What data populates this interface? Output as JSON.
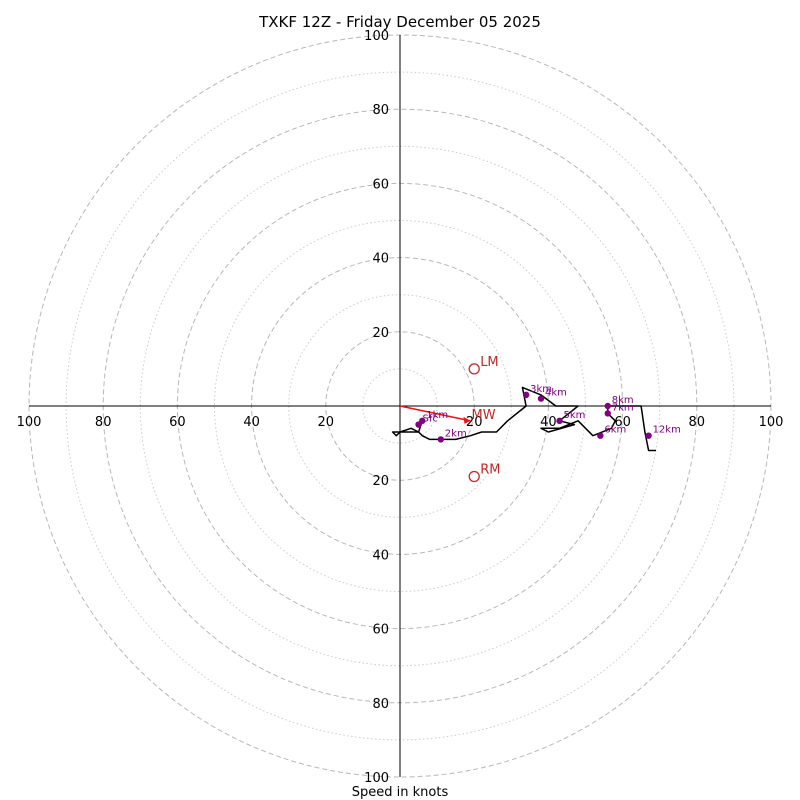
{
  "chart_data": {
    "type": "hodograph",
    "title": "TXKF 12Z - Friday December 05 2025",
    "xlabel": "Speed in knots",
    "units": "knots",
    "range": [
      -100,
      100
    ],
    "rings_major": [
      20,
      40,
      60,
      80,
      100
    ],
    "rings_minor": [
      10,
      30,
      50,
      70,
      90
    ],
    "tick_labels_x": [
      "100",
      "80",
      "60",
      "40",
      "20",
      "20",
      "40",
      "60",
      "80",
      "100"
    ],
    "tick_values_x": [
      -100,
      -80,
      -60,
      -40,
      -20,
      20,
      40,
      60,
      80,
      100
    ],
    "tick_labels_y": [
      "100",
      "80",
      "60",
      "40",
      "20",
      "20",
      "40",
      "60",
      "80",
      "100"
    ],
    "tick_values_y": [
      100,
      80,
      60,
      40,
      20,
      -20,
      -40,
      -60,
      -80,
      -100
    ],
    "hodograph_trace": [
      [
        5,
        -5
      ],
      [
        6,
        -4
      ],
      [
        5,
        -7
      ],
      [
        3,
        -6
      ],
      [
        0,
        -7
      ],
      [
        -1,
        -8
      ],
      [
        -2,
        -7
      ],
      [
        -1,
        -7
      ],
      [
        2,
        -7
      ],
      [
        5,
        -7
      ],
      [
        6,
        -8
      ],
      [
        8,
        -9
      ],
      [
        11,
        -9
      ],
      [
        15,
        -9
      ],
      [
        19,
        -8
      ],
      [
        22,
        -7
      ],
      [
        26,
        -7
      ],
      [
        29,
        -4
      ],
      [
        34,
        0
      ],
      [
        33,
        5
      ],
      [
        38,
        3
      ],
      [
        42,
        0
      ],
      [
        48,
        0
      ],
      [
        43,
        -4
      ],
      [
        47,
        -5
      ],
      [
        40,
        -7
      ],
      [
        38,
        -6
      ],
      [
        43,
        -6
      ],
      [
        48,
        -4
      ],
      [
        52,
        -8
      ],
      [
        57,
        -6
      ],
      [
        58,
        -4
      ],
      [
        56,
        -2
      ],
      [
        56,
        0
      ],
      [
        60,
        0
      ],
      [
        65,
        0
      ],
      [
        66,
        -7
      ],
      [
        67,
        -12
      ],
      [
        69,
        -12
      ]
    ],
    "height_markers": [
      {
        "label": "Sfc",
        "u": 5,
        "v": -5
      },
      {
        "label": "1km",
        "u": 6,
        "v": -4
      },
      {
        "label": "2km",
        "u": 11,
        "v": -9
      },
      {
        "label": "3km",
        "u": 34,
        "v": 3
      },
      {
        "label": "4km",
        "u": 38,
        "v": 2
      },
      {
        "label": "5km",
        "u": 43,
        "v": -4
      },
      {
        "label": "6km",
        "u": 54,
        "v": -8
      },
      {
        "label": "7km",
        "u": 56,
        "v": -2
      },
      {
        "label": "8km",
        "u": 56,
        "v": 0
      },
      {
        "label": "12km",
        "u": 67,
        "v": -8
      }
    ],
    "mean_wind": {
      "label": "MW",
      "u": 19,
      "v": -4
    },
    "left_mover": {
      "label": "LM",
      "u": 20,
      "v": 10
    },
    "right_mover": {
      "label": "RM",
      "u": 20,
      "v": -19
    }
  },
  "colors": {
    "trace": "#000000",
    "markers": "#800080",
    "motion": "#c0282a",
    "shear_vector": "#ee1111",
    "major_ring": "#b8b8b8",
    "minor_ring": "#cccccc"
  }
}
